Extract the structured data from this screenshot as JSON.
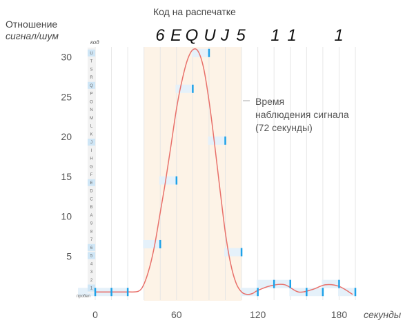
{
  "chart_data": {
    "type": "line",
    "title": "Код на распечатке",
    "printed_code": [
      "6",
      "E",
      "Q",
      "U",
      "J",
      "5",
      "1",
      "1",
      "1"
    ],
    "ylabel_line1": "Отношение",
    "ylabel_line2": "сигнал/шум",
    "xlabel": "секунды",
    "code_axis_label": "код",
    "space_label": "пробел",
    "code_letters": [
      "1",
      "2",
      "3",
      "4",
      "5",
      "6",
      "7",
      "8",
      "9",
      "A",
      "B",
      "C",
      "D",
      "E",
      "F",
      "G",
      "H",
      "I",
      "J",
      "K",
      "L",
      "M",
      "N",
      "O",
      "P",
      "Q",
      "R",
      "S",
      "T",
      "U"
    ],
    "highlighted_codes": [
      "1",
      "5",
      "6",
      "E",
      "J",
      "Q",
      "U"
    ],
    "xlim": [
      0,
      192
    ],
    "ylim": [
      0,
      31
    ],
    "x_ticks": [
      0,
      60,
      120,
      180
    ],
    "y_ticks": [
      5,
      10,
      15,
      20,
      25,
      30
    ],
    "observation_window": [
      36,
      108
    ],
    "annotation": [
      "Время",
      "наблюдения сигнала",
      "(72 секунды)"
    ],
    "curve": {
      "name": "",
      "x": [
        0,
        12,
        24,
        32,
        36,
        40,
        44,
        48,
        52,
        56,
        60,
        64,
        68,
        72,
        76,
        80,
        84,
        88,
        92,
        96,
        100,
        104,
        108,
        112,
        116,
        120,
        130,
        140,
        150,
        160,
        170,
        180,
        190
      ],
      "y": [
        0.5,
        0.5,
        0.5,
        0.6,
        1.5,
        3.5,
        6.5,
        10.5,
        14.5,
        19.0,
        23.5,
        27.0,
        29.6,
        30.9,
        30.7,
        28.6,
        24.5,
        19.2,
        13.5,
        8.0,
        4.0,
        1.6,
        0.5,
        0.2,
        0.3,
        0.7,
        1.3,
        1.4,
        0.5,
        0.8,
        1.4,
        1.2,
        0.2
      ]
    },
    "samples": [
      {
        "x": 0,
        "y": 0.5,
        "code": "пробел"
      },
      {
        "x": 12,
        "y": 0.5,
        "code": "пробел"
      },
      {
        "x": 24,
        "y": 0.5,
        "code": "пробел"
      },
      {
        "x": 48,
        "y": 6.5,
        "code": "6"
      },
      {
        "x": 60,
        "y": 14.5,
        "code": "E"
      },
      {
        "x": 72,
        "y": 26.0,
        "code": "Q"
      },
      {
        "x": 84,
        "y": 30.5,
        "code": "U"
      },
      {
        "x": 96,
        "y": 19.5,
        "code": "J"
      },
      {
        "x": 108,
        "y": 5.5,
        "code": "5"
      },
      {
        "x": 120,
        "y": 0.5,
        "code": "пробел"
      },
      {
        "x": 132,
        "y": 1.5,
        "code": "1"
      },
      {
        "x": 144,
        "y": 1.5,
        "code": "1"
      },
      {
        "x": 156,
        "y": 0.5,
        "code": "пробел"
      },
      {
        "x": 168,
        "y": 0.5,
        "code": "пробел"
      },
      {
        "x": 180,
        "y": 1.5,
        "code": "1"
      },
      {
        "x": 192,
        "y": 0.5,
        "code": "пробел"
      }
    ],
    "colors": {
      "curve": "#e8706a",
      "marker": "#1da1e8",
      "band": "#e5f1fa",
      "window": "#fdf3e7",
      "grid": "#e6e6e6",
      "code_strip": "#f2f2f2"
    }
  }
}
